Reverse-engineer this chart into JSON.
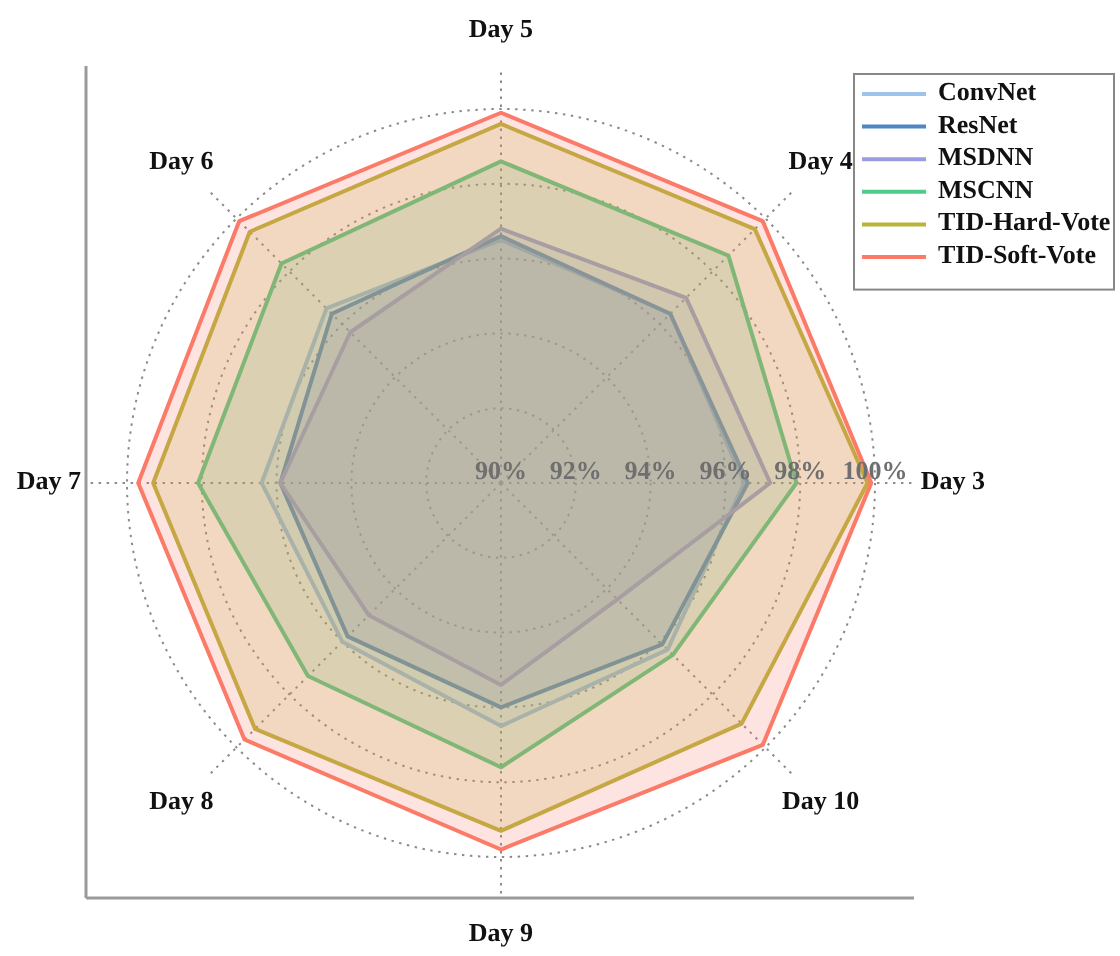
{
  "chart_data": {
    "type": "radar",
    "categories": [
      "Day 5",
      "Day 4",
      "Day 3",
      "Day 10",
      "Day 9",
      "Day 8",
      "Day 7",
      "Day 6"
    ],
    "series": [
      {
        "name": "ConvNet",
        "color": "#9ec3ea",
        "values": [
          96.5,
          96.4,
          96.5,
          96.3,
          96.5,
          96.0,
          96.4,
          96.6
        ]
      },
      {
        "name": "ResNet",
        "color": "#4f86c6",
        "values": [
          96.6,
          96.4,
          96.6,
          96.1,
          96.0,
          95.8,
          95.9,
          96.4
        ]
      },
      {
        "name": "MSDNN",
        "color": "#9b9be0",
        "values": [
          96.8,
          97.0,
          97.2,
          94.4,
          95.4,
          95.0,
          95.9,
          95.7
        ]
      },
      {
        "name": "MSCNN",
        "color": "#4dcc8a",
        "values": [
          98.6,
          98.6,
          97.9,
          96.5,
          97.6,
          97.3,
          98.1,
          98.3
        ]
      },
      {
        "name": "TID-Hard-Vote",
        "color": "#b8b33a",
        "values": [
          99.6,
          99.6,
          99.8,
          99.1,
          99.3,
          99.3,
          99.3,
          99.5
        ]
      },
      {
        "name": "TID-Soft-Vote",
        "color": "#fb7a68",
        "values": [
          99.9,
          99.9,
          99.9,
          99.9,
          99.8,
          99.7,
          99.7,
          99.9
        ]
      }
    ],
    "ylim": [
      90,
      100
    ],
    "yticks": [
      {
        "value": 90,
        "label": "90%"
      },
      {
        "value": 92,
        "label": "92%"
      },
      {
        "value": 94,
        "label": "94%"
      },
      {
        "value": 96,
        "label": "96%"
      },
      {
        "value": 98,
        "label": "98%"
      },
      {
        "value": 100,
        "label": "100%"
      }
    ],
    "grid": true,
    "legend": "top right"
  }
}
